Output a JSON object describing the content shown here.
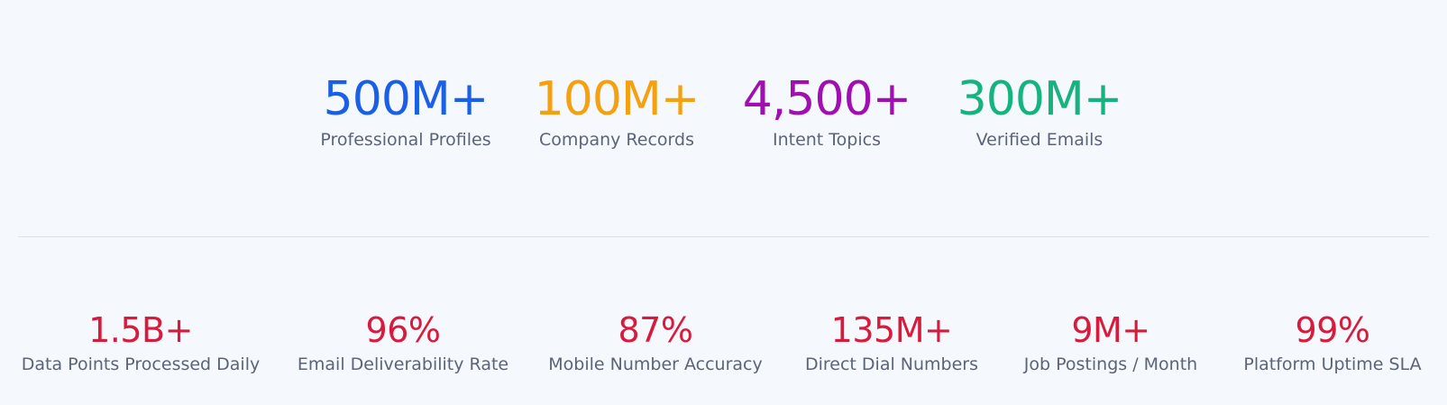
{
  "primary_stats": [
    {
      "value": "500M+",
      "label": "Professional Profiles"
    },
    {
      "value": "100M+",
      "label": "Company Records"
    },
    {
      "value": "4,500+",
      "label": "Intent Topics"
    },
    {
      "value": "300M+",
      "label": "Verified Emails"
    }
  ],
  "secondary_stats": [
    {
      "value": "1.5B+",
      "label": "Data Points Processed Daily"
    },
    {
      "value": "96%",
      "label": "Email Deliverability Rate"
    },
    {
      "value": "87%",
      "label": "Mobile Number Accuracy"
    },
    {
      "value": "135M+",
      "label": "Direct Dial Numbers"
    },
    {
      "value": "9M+",
      "label": "Job Postings / Month"
    },
    {
      "value": "99%",
      "label": "Platform Uptime SLA"
    }
  ]
}
